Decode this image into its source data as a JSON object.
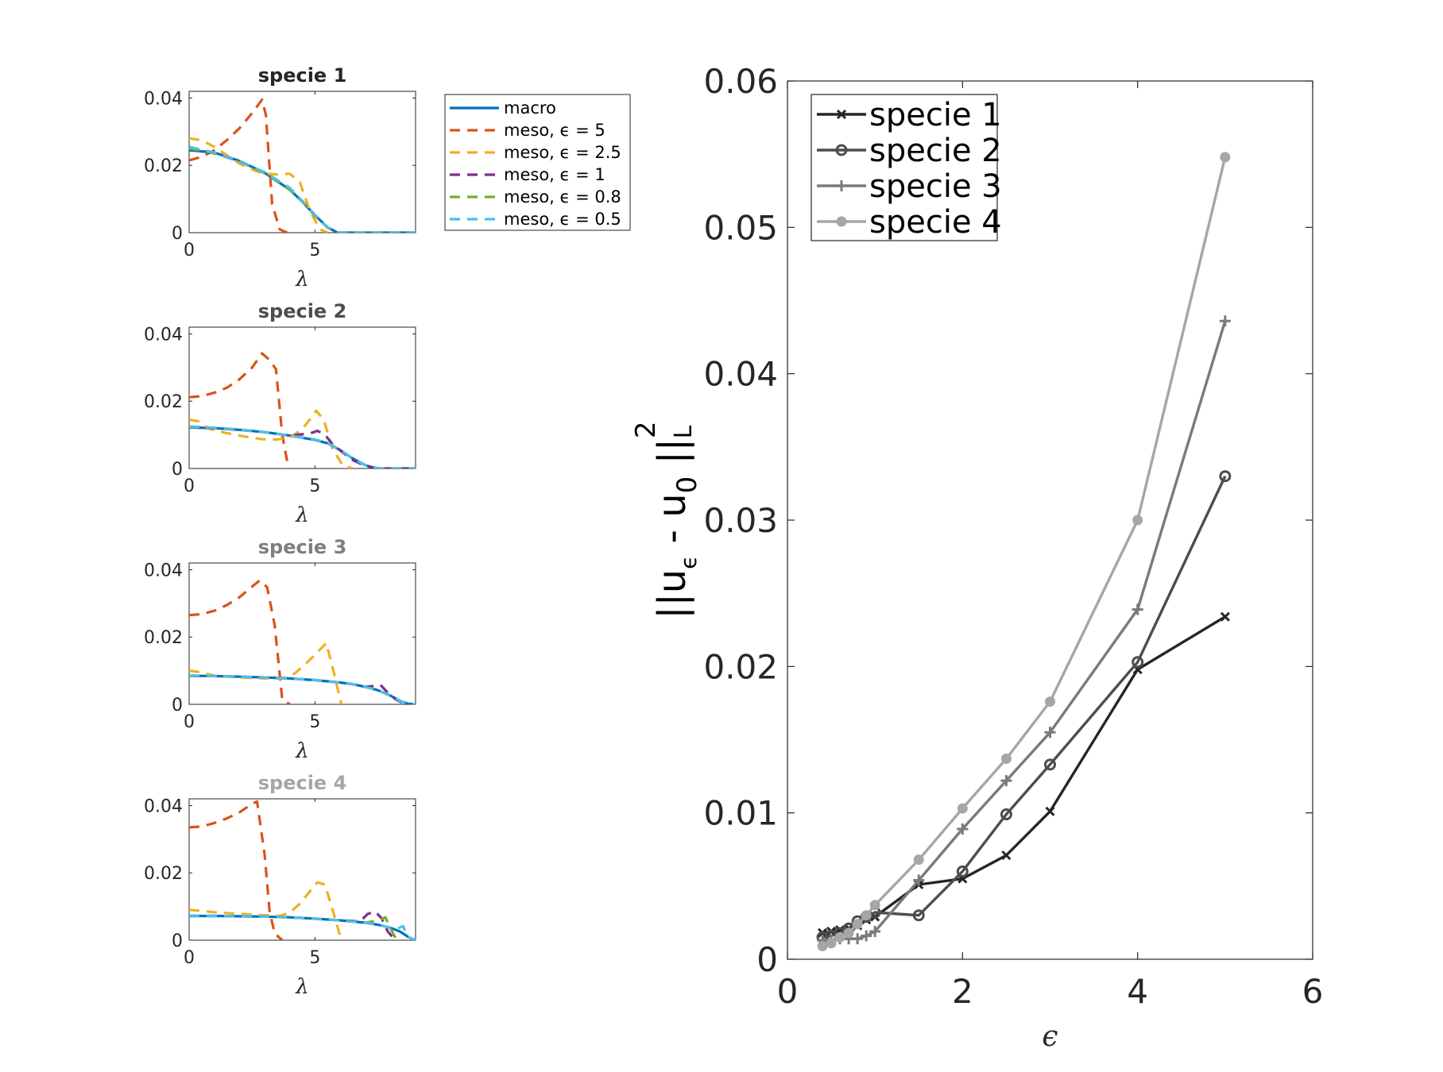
{
  "chart_data": [
    {
      "type": "line",
      "title": "specie 1",
      "title_color": "#262626",
      "xlabel": "λ",
      "ylabel": "",
      "xlim": [
        0,
        9
      ],
      "ylim": [
        0,
        0.042
      ],
      "xticks": [
        "0",
        "5"
      ],
      "yticks": [
        "0",
        "0.02",
        "0.04"
      ],
      "series": [
        {
          "name": "macro",
          "style": "solid",
          "x": [
            0,
            1,
            2,
            3,
            4,
            4.5,
            5,
            5.5,
            5.9,
            9
          ],
          "values": [
            0.0245,
            0.0238,
            0.0213,
            0.0178,
            0.0128,
            0.0092,
            0.0052,
            0.0016,
            0.0,
            0.0
          ]
        },
        {
          "name": "meso, ε = 5",
          "style": "dashed",
          "x": [
            0,
            0.5,
            1,
            1.5,
            2,
            2.5,
            2.9,
            3.05,
            3.3,
            3.6,
            3.9
          ],
          "values": [
            0.0215,
            0.0225,
            0.0245,
            0.0275,
            0.031,
            0.0355,
            0.0395,
            0.035,
            0.0085,
            0.001,
            0.0
          ]
        },
        {
          "name": "meso, ε = 2.5",
          "style": "dashed",
          "x": [
            0,
            0.5,
            1,
            2,
            2.6,
            3,
            3.5,
            4,
            4.4,
            4.8,
            5.2,
            5.5
          ],
          "values": [
            0.028,
            0.0275,
            0.0255,
            0.0205,
            0.0185,
            0.0175,
            0.0173,
            0.0175,
            0.015,
            0.0065,
            0.001,
            0.0
          ]
        },
        {
          "name": "meso, ε = 1",
          "style": "dashed",
          "x": [
            0,
            1,
            2,
            3,
            4,
            4.5,
            5,
            5.5,
            5.9,
            9
          ],
          "values": [
            0.025,
            0.0236,
            0.0212,
            0.0177,
            0.0128,
            0.0094,
            0.0052,
            0.0015,
            0.0,
            0.0
          ]
        },
        {
          "name": "meso, ε = 0.8",
          "style": "dashed",
          "x": [
            0,
            1,
            2,
            3,
            4,
            4.5,
            5,
            5.5,
            5.9,
            9
          ],
          "values": [
            0.025,
            0.0237,
            0.0213,
            0.0177,
            0.0127,
            0.0092,
            0.005,
            0.0015,
            0.0,
            0.0
          ]
        },
        {
          "name": "meso, ε = 0.5",
          "style": "dashed",
          "x": [
            0,
            1,
            2,
            3,
            4,
            4.5,
            5,
            5.5,
            5.9,
            9
          ],
          "values": [
            0.0255,
            0.0238,
            0.0212,
            0.018,
            0.0133,
            0.0094,
            0.0051,
            0.0016,
            0.0,
            0.0
          ]
        }
      ]
    },
    {
      "type": "line",
      "title": "specie 2",
      "title_color": "#4d4d4d",
      "xlabel": "λ",
      "ylabel": "",
      "xlim": [
        0,
        9
      ],
      "ylim": [
        0,
        0.042
      ],
      "xticks": [
        "0",
        "5"
      ],
      "yticks": [
        "0",
        "0.02",
        "0.04"
      ],
      "series": [
        {
          "name": "macro",
          "style": "solid",
          "x": [
            0,
            1,
            2,
            3,
            4,
            5,
            5.5,
            6,
            6.5,
            7,
            7.3,
            7.6,
            9
          ],
          "values": [
            0.0122,
            0.012,
            0.0115,
            0.0108,
            0.0098,
            0.0085,
            0.0075,
            0.0055,
            0.003,
            0.001,
            0.0003,
            0.0,
            0.0
          ]
        },
        {
          "name": "meso, ε = 5",
          "style": "dashed",
          "x": [
            0,
            0.5,
            1,
            1.5,
            2,
            2.5,
            2.9,
            3.2,
            3.45,
            3.7,
            3.95
          ],
          "values": [
            0.0212,
            0.0215,
            0.0225,
            0.024,
            0.0265,
            0.03,
            0.0342,
            0.0322,
            0.0295,
            0.01,
            0.0
          ]
        },
        {
          "name": "meso, ε = 2.5",
          "style": "dashed",
          "x": [
            0,
            0.4,
            0.8,
            1.5,
            2.2,
            2.9,
            3.5,
            4.1,
            4.5,
            4.85,
            5.05,
            5.35,
            5.7,
            6.1,
            6.5
          ],
          "values": [
            0.0145,
            0.014,
            0.0118,
            0.0105,
            0.0095,
            0.0087,
            0.0086,
            0.0095,
            0.0118,
            0.015,
            0.0172,
            0.0145,
            0.0058,
            0.001,
            0.0
          ]
        },
        {
          "name": "meso, ε = 1",
          "style": "dashed",
          "x": [
            0,
            1,
            2,
            3,
            4,
            4.8,
            5.1,
            5.4,
            5.7,
            6.1,
            6.5,
            7.0,
            7.5,
            9
          ],
          "values": [
            0.0122,
            0.012,
            0.0115,
            0.0108,
            0.0098,
            0.0104,
            0.0112,
            0.01,
            0.0072,
            0.0048,
            0.0025,
            0.0008,
            0.0,
            0.0
          ]
        },
        {
          "name": "meso, ε = 0.8",
          "style": "dashed",
          "x": [
            0,
            1,
            2,
            3,
            4,
            5,
            5.5,
            6,
            6.5,
            7,
            7.5,
            9
          ],
          "values": [
            0.0123,
            0.0121,
            0.0115,
            0.0108,
            0.0098,
            0.0086,
            0.0076,
            0.0055,
            0.003,
            0.001,
            0.0,
            0.0
          ]
        },
        {
          "name": "meso, ε = 0.5",
          "style": "dashed",
          "x": [
            0,
            1,
            2,
            3,
            4,
            5,
            5.5,
            6,
            6.5,
            7,
            7.5,
            9
          ],
          "values": [
            0.0125,
            0.0121,
            0.0116,
            0.0108,
            0.0098,
            0.0086,
            0.0075,
            0.0055,
            0.003,
            0.001,
            0.0,
            0.0
          ]
        }
      ]
    },
    {
      "type": "line",
      "title": "specie 3",
      "title_color": "#7f7f7f",
      "xlabel": "λ",
      "ylabel": "",
      "xlim": [
        0,
        9
      ],
      "ylim": [
        0,
        0.042
      ],
      "xticks": [
        "0",
        "5"
      ],
      "yticks": [
        "0",
        "0.02",
        "0.04"
      ],
      "series": [
        {
          "name": "macro",
          "style": "solid",
          "x": [
            0,
            1,
            2,
            3,
            4,
            5,
            6,
            6.5,
            7,
            7.5,
            8,
            8.4,
            8.7,
            9
          ],
          "values": [
            0.0085,
            0.0084,
            0.0082,
            0.008,
            0.0077,
            0.0072,
            0.0065,
            0.006,
            0.0052,
            0.0042,
            0.0026,
            0.001,
            0.0002,
            0.0
          ]
        },
        {
          "name": "meso, ε = 5",
          "style": "dashed",
          "x": [
            0,
            0.5,
            1,
            1.5,
            2,
            2.5,
            2.8,
            3.1,
            3.4,
            3.7,
            4.0
          ],
          "values": [
            0.0265,
            0.0268,
            0.0278,
            0.0295,
            0.0318,
            0.035,
            0.0368,
            0.0348,
            0.0235,
            0.0015,
            0.0
          ]
        },
        {
          "name": "meso, ε = 2.5",
          "style": "dashed",
          "x": [
            0,
            0.5,
            1,
            2,
            3,
            3.7,
            4.2,
            4.7,
            5.1,
            5.45,
            5.75,
            6.05
          ],
          "values": [
            0.01,
            0.0095,
            0.0085,
            0.008,
            0.0077,
            0.0077,
            0.0092,
            0.0125,
            0.0155,
            0.0182,
            0.0095,
            0.0
          ]
        },
        {
          "name": "meso, ε = 1",
          "style": "dashed",
          "x": [
            0,
            1,
            2,
            3,
            4,
            5,
            6,
            6.5,
            7,
            7.4,
            7.6,
            7.85,
            8.2,
            8.6
          ],
          "values": [
            0.0085,
            0.0084,
            0.0082,
            0.008,
            0.0077,
            0.0072,
            0.0065,
            0.006,
            0.0052,
            0.0055,
            0.0058,
            0.0038,
            0.0015,
            0.0
          ]
        },
        {
          "name": "meso, ε = 0.8",
          "style": "dashed",
          "x": [
            0,
            1,
            2,
            3,
            4,
            5,
            6,
            6.5,
            7,
            7.5,
            8,
            8.4,
            8.7,
            9
          ],
          "values": [
            0.0085,
            0.0084,
            0.0082,
            0.008,
            0.0077,
            0.0072,
            0.0065,
            0.006,
            0.0052,
            0.0042,
            0.0026,
            0.001,
            0.0002,
            0.0
          ]
        },
        {
          "name": "meso, ε = 0.5",
          "style": "dashed",
          "x": [
            0,
            1,
            2,
            3,
            4,
            5,
            6,
            6.5,
            7,
            7.5,
            8,
            8.4,
            8.7,
            9
          ],
          "values": [
            0.0086,
            0.0084,
            0.0082,
            0.008,
            0.0077,
            0.0072,
            0.0065,
            0.006,
            0.0052,
            0.0042,
            0.0025,
            0.001,
            0.0002,
            0.0
          ]
        }
      ]
    },
    {
      "type": "line",
      "title": "specie 4",
      "title_color": "#a6a6a6",
      "xlabel": "λ",
      "ylabel": "",
      "xlim": [
        0,
        9
      ],
      "ylim": [
        0,
        0.042
      ],
      "xticks": [
        "0",
        "5"
      ],
      "yticks": [
        "0",
        "0.02",
        "0.04"
      ],
      "series": [
        {
          "name": "macro",
          "style": "solid",
          "x": [
            0,
            1,
            2,
            3,
            4,
            5,
            6,
            7,
            7.5,
            8,
            8.4,
            8.7,
            9
          ],
          "values": [
            0.0072,
            0.0072,
            0.0071,
            0.007,
            0.0068,
            0.0064,
            0.0059,
            0.0052,
            0.0046,
            0.0037,
            0.0025,
            0.001,
            0.0
          ]
        },
        {
          "name": "meso, ε = 5",
          "style": "dashed",
          "x": [
            0,
            0.5,
            1,
            1.5,
            2,
            2.5,
            2.7,
            3.0,
            3.2,
            3.4,
            3.7
          ],
          "values": [
            0.0335,
            0.0338,
            0.0348,
            0.0362,
            0.038,
            0.0405,
            0.0412,
            0.0255,
            0.0085,
            0.002,
            0.0
          ]
        },
        {
          "name": "meso, ε = 2.5",
          "style": "dashed",
          "x": [
            0,
            0.5,
            1,
            2,
            3,
            3.6,
            4.0,
            4.4,
            4.8,
            5.1,
            5.4,
            5.75,
            6.05
          ],
          "values": [
            0.009,
            0.0087,
            0.0083,
            0.0078,
            0.0074,
            0.0072,
            0.0082,
            0.0108,
            0.0145,
            0.0172,
            0.0165,
            0.0078,
            0.0
          ]
        },
        {
          "name": "meso, ε = 1",
          "style": "dashed",
          "x": [
            0,
            1,
            2,
            3,
            4,
            5,
            6,
            6.8,
            7.1,
            7.4,
            7.65,
            7.9,
            8.2
          ],
          "values": [
            0.0072,
            0.0072,
            0.0071,
            0.007,
            0.0068,
            0.0064,
            0.0059,
            0.0056,
            0.0078,
            0.0085,
            0.0065,
            0.0025,
            0.0
          ]
        },
        {
          "name": "meso, ε = 0.8",
          "style": "dashed",
          "x": [
            0,
            1,
            2,
            3,
            4,
            5,
            6,
            7,
            7.5,
            7.8,
            8.0,
            8.25
          ],
          "values": [
            0.0073,
            0.0072,
            0.0071,
            0.007,
            0.0068,
            0.0064,
            0.0059,
            0.0052,
            0.0058,
            0.0068,
            0.0035,
            0.0
          ]
        },
        {
          "name": "meso, ε = 0.5",
          "style": "dashed",
          "x": [
            0,
            1,
            2,
            3,
            4,
            5,
            6,
            7,
            7.5,
            8,
            8.3,
            8.5,
            8.7,
            9
          ],
          "values": [
            0.0073,
            0.0072,
            0.0071,
            0.007,
            0.0068,
            0.0064,
            0.0059,
            0.0052,
            0.0046,
            0.0037,
            0.0035,
            0.0042,
            0.001,
            0.0
          ]
        }
      ]
    },
    {
      "type": "line",
      "title": "",
      "xlabel": "ϵ",
      "ylabel": "||u_ϵ - u_0||²_L",
      "ylabel_parts": {
        "main": "||u",
        "sub1": "ϵ",
        "mid": " - u",
        "sub2": "0",
        "end": " ||",
        "sup": "2",
        "sub3": "L"
      },
      "xlim": [
        0,
        6
      ],
      "ylim": [
        0,
        0.06
      ],
      "xticks": [
        "0",
        "2",
        "4",
        "6"
      ],
      "yticks": [
        "0",
        "0.01",
        "0.02",
        "0.03",
        "0.04",
        "0.05",
        "0.06"
      ],
      "x": [
        0.4,
        0.5,
        0.6,
        0.7,
        0.8,
        0.9,
        1.0,
        1.5,
        2.0,
        2.5,
        3.0,
        4.0,
        5.0
      ],
      "series": [
        {
          "name": "specie 1",
          "marker": "x",
          "values": [
            0.0018,
            0.0019,
            0.002,
            0.0021,
            0.0023,
            0.0027,
            0.0029,
            0.0051,
            0.0055,
            0.0071,
            0.0101,
            0.0198,
            0.0234
          ]
        },
        {
          "name": "specie 2",
          "marker": "o",
          "values": [
            0.0015,
            0.0016,
            0.0018,
            0.0021,
            0.0026,
            0.0029,
            0.0032,
            0.003,
            0.006,
            0.0099,
            0.0133,
            0.0203,
            0.033
          ]
        },
        {
          "name": "specie 3",
          "marker": "+",
          "values": [
            0.0013,
            0.0013,
            0.0014,
            0.0014,
            0.0014,
            0.0016,
            0.0019,
            0.0054,
            0.0089,
            0.0122,
            0.0155,
            0.0239,
            0.0436
          ]
        },
        {
          "name": "specie 4",
          "marker": "dot",
          "values": [
            0.0009,
            0.0011,
            0.0015,
            0.0018,
            0.0024,
            0.003,
            0.0037,
            0.0068,
            0.0103,
            0.0137,
            0.0176,
            0.03,
            0.0548
          ]
        }
      ]
    }
  ],
  "small_legend": {
    "entries": [
      "macro",
      "meso, ϵ = 5",
      "meso, ϵ = 2.5",
      "meso, ϵ = 1",
      "meso, ϵ = 0.8",
      "meso, ϵ = 0.5"
    ]
  },
  "colors": {
    "macro": "#0072bd",
    "meso5": "#d95319",
    "meso25": "#edb120",
    "meso1": "#7e2f8e",
    "meso08": "#77ac30",
    "meso05": "#4dbeee",
    "specie1": "#262626",
    "specie2": "#4d4d4d",
    "specie3": "#7a7a7a",
    "specie4": "#a6a6a6"
  }
}
